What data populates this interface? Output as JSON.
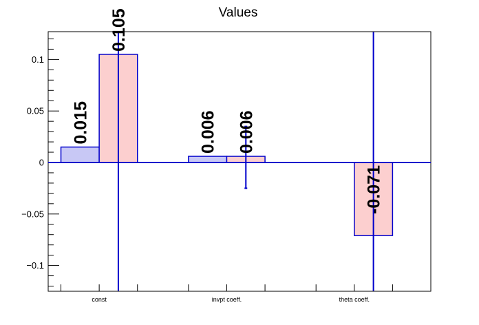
{
  "chart_data": {
    "type": "bar",
    "title": "Values",
    "xlabel": "",
    "ylabel": "",
    "categories": [
      "const",
      "invpt coeff.",
      "theta coeff."
    ],
    "ylim": [
      -0.125,
      0.127
    ],
    "yticks": [
      {
        "value": 0.1,
        "label": "0.1"
      },
      {
        "value": 0.05,
        "label": "0.05"
      },
      {
        "value": 0,
        "label": "0"
      },
      {
        "value": -0.05,
        "label": "−0.05"
      },
      {
        "value": -0.1,
        "label": "−0.1"
      }
    ],
    "grid": false,
    "colors": {
      "series_a_fill": "#c8c8f5",
      "series_b_fill": "#fccfcf",
      "outline": "#0000cc",
      "error": "#0000cc",
      "axis": "#000000"
    },
    "series": [
      {
        "values": [
          0.015,
          0.006,
          null
        ],
        "labels": [
          "0.015",
          "0.006",
          ""
        ],
        "errors": [
          null,
          null,
          null
        ]
      },
      {
        "values": [
          0.105,
          0.006,
          -0.071
        ],
        "labels": [
          "0.105",
          "0.006",
          "-0.071"
        ],
        "errors": [
          null,
          [
            -0.025,
            0.035
          ],
          null
        ]
      }
    ]
  }
}
